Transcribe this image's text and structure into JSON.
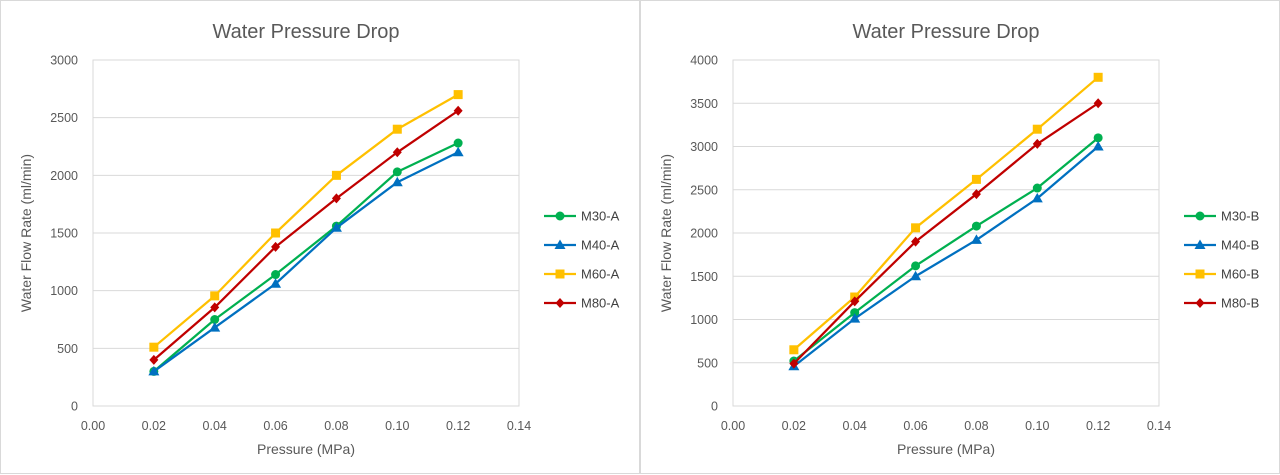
{
  "chart_data": [
    {
      "type": "line",
      "title": "Water Pressure Drop",
      "xlabel": "Pressure (MPa)",
      "ylabel": "Water Flow Rate (ml/min)",
      "xlim": [
        0,
        0.14
      ],
      "ylim": [
        0,
        3000
      ],
      "x_ticks": [
        "0.00",
        "0.02",
        "0.04",
        "0.06",
        "0.08",
        "0.10",
        "0.12",
        "0.14"
      ],
      "y_ticks": [
        "0",
        "500",
        "1000",
        "1500",
        "2000",
        "2500",
        "3000"
      ],
      "grid": "horizontal",
      "legend_position": "right",
      "x": [
        0.02,
        0.04,
        0.06,
        0.08,
        0.1,
        0.12
      ],
      "series": [
        {
          "name": "M30-A",
          "color": "#00b050",
          "marker": "circle",
          "values": [
            300,
            750,
            1140,
            1560,
            2030,
            2280
          ]
        },
        {
          "name": "M40-A",
          "color": "#0070c0",
          "marker": "triangle",
          "values": [
            300,
            680,
            1060,
            1545,
            1940,
            2200
          ]
        },
        {
          "name": "M60-A",
          "color": "#ffc000",
          "marker": "square",
          "values": [
            510,
            955,
            1500,
            2000,
            2400,
            2700
          ]
        },
        {
          "name": "M80-A",
          "color": "#c00000",
          "marker": "diamond",
          "values": [
            400,
            855,
            1380,
            1800,
            2200,
            2560
          ]
        }
      ]
    },
    {
      "type": "line",
      "title": "Water Pressure Drop",
      "xlabel": "Pressure (MPa)",
      "ylabel": "Water Flow Rate (ml/min)",
      "xlim": [
        0,
        0.14
      ],
      "ylim": [
        0,
        4000
      ],
      "x_ticks": [
        "0.00",
        "0.02",
        "0.04",
        "0.06",
        "0.08",
        "0.10",
        "0.12",
        "0.14"
      ],
      "y_ticks": [
        "0",
        "500",
        "1000",
        "1500",
        "2000",
        "2500",
        "3000",
        "3500",
        "4000"
      ],
      "grid": "horizontal",
      "legend_position": "right",
      "x": [
        0.02,
        0.04,
        0.06,
        0.08,
        0.1,
        0.12
      ],
      "series": [
        {
          "name": "M30-B",
          "color": "#00b050",
          "marker": "circle",
          "values": [
            520,
            1080,
            1620,
            2080,
            2520,
            3100
          ]
        },
        {
          "name": "M40-B",
          "color": "#0070c0",
          "marker": "triangle",
          "values": [
            460,
            1010,
            1500,
            1920,
            2400,
            3000
          ]
        },
        {
          "name": "M60-B",
          "color": "#ffc000",
          "marker": "square",
          "values": [
            650,
            1260,
            2060,
            2620,
            3200,
            3800
          ]
        },
        {
          "name": "M80-B",
          "color": "#c00000",
          "marker": "diamond",
          "values": [
            490,
            1210,
            1900,
            2450,
            3030,
            3500
          ]
        }
      ]
    }
  ]
}
